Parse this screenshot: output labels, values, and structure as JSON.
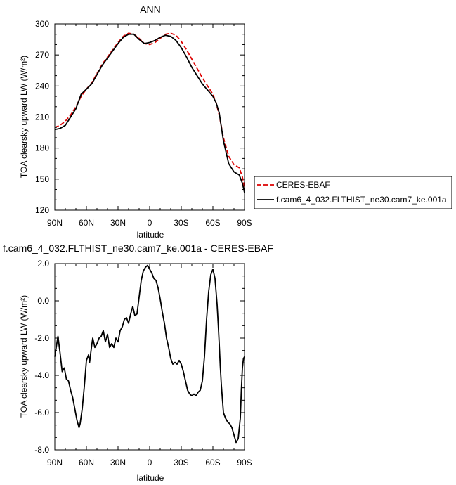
{
  "chart_data": [
    {
      "type": "line",
      "title": "ANN",
      "xlabel": "latitude",
      "ylabel": "TOA clearsky upward LW (W/m²)",
      "xlim": [
        90,
        -90
      ],
      "ylim": [
        120,
        300
      ],
      "x_ticks": [
        90,
        60,
        30,
        0,
        -30,
        -60,
        -90
      ],
      "x_tick_labels": [
        "90N",
        "60N",
        "30N",
        "0",
        "30S",
        "60S",
        "90S"
      ],
      "y_ticks": [
        120,
        150,
        180,
        210,
        240,
        270,
        300
      ],
      "y_tick_labels": [
        "120",
        "150",
        "180",
        "210",
        "240",
        "270",
        "300"
      ],
      "legend_position": "right",
      "series": [
        {
          "name": "CERES-EBAF",
          "color": "#dd0000",
          "dash": "dashed",
          "x": [
            90,
            85,
            80,
            75,
            70,
            65,
            60,
            55,
            50,
            45,
            40,
            35,
            30,
            25,
            20,
            15,
            10,
            5,
            0,
            -5,
            -10,
            -15,
            -20,
            -25,
            -30,
            -35,
            -40,
            -45,
            -50,
            -55,
            -60,
            -63,
            -66,
            -70,
            -75,
            -80,
            -85,
            -88,
            -90
          ],
          "y": [
            200,
            202,
            206,
            212,
            220,
            230,
            237,
            243,
            252,
            261,
            268,
            275,
            282,
            288,
            291,
            290,
            286,
            281,
            280,
            282,
            286,
            290,
            291,
            289,
            283,
            275,
            266,
            257,
            248,
            240,
            232,
            224,
            212,
            190,
            172,
            164,
            161,
            152,
            142
          ]
        },
        {
          "name": "f.cam6_4_032.FLTHIST_ne30.cam7_ke.001a",
          "color": "#000000",
          "dash": "solid",
          "x": [
            90,
            85,
            80,
            75,
            70,
            65,
            60,
            55,
            50,
            45,
            40,
            35,
            30,
            25,
            20,
            15,
            10,
            5,
            0,
            -5,
            -10,
            -15,
            -20,
            -25,
            -30,
            -35,
            -40,
            -45,
            -50,
            -55,
            -60,
            -63,
            -66,
            -70,
            -75,
            -80,
            -85,
            -88,
            -90
          ],
          "y": [
            198,
            199,
            202,
            210,
            218,
            232,
            237,
            242,
            251,
            260,
            267,
            274,
            281,
            287,
            290,
            290,
            285,
            281,
            282,
            284,
            287,
            289,
            288,
            284,
            277,
            268,
            258,
            250,
            242,
            236,
            230,
            224,
            214,
            187,
            165,
            157,
            154,
            146,
            137
          ]
        }
      ]
    },
    {
      "type": "line",
      "title": "f.cam6_4_032.FLTHIST_ne30.cam7_ke.001a - CERES-EBAF",
      "xlabel": "latitude",
      "ylabel": "TOA clearsky upward LW (W/m²)",
      "xlim": [
        90,
        -90
      ],
      "ylim": [
        -8,
        2
      ],
      "x_ticks": [
        90,
        60,
        30,
        0,
        -30,
        -60,
        -90
      ],
      "x_tick_labels": [
        "90N",
        "60N",
        "30N",
        "0",
        "30S",
        "60S",
        "90S"
      ],
      "y_ticks": [
        -8,
        -6,
        -4,
        -2,
        0,
        2
      ],
      "y_tick_labels": [
        "-8.0",
        "-6.0",
        "-4.0",
        "-2.0",
        "0.0",
        "2.0"
      ],
      "series": [
        {
          "color": "#000000",
          "dash": "solid",
          "x": [
            90,
            87,
            85,
            83,
            81,
            79,
            77,
            75,
            73,
            71,
            69,
            67,
            66,
            64,
            62,
            60,
            58,
            57,
            55,
            54,
            52,
            50,
            48,
            46,
            44,
            42,
            40,
            38,
            36,
            34,
            32,
            30,
            28,
            26,
            24,
            22,
            20,
            18,
            16,
            14,
            12,
            10,
            8,
            6,
            4,
            2,
            0,
            -2,
            -4,
            -6,
            -8,
            -10,
            -12,
            -14,
            -16,
            -18,
            -20,
            -22,
            -24,
            -26,
            -28,
            -30,
            -32,
            -34,
            -36,
            -38,
            -40,
            -42,
            -44,
            -46,
            -48,
            -50,
            -52,
            -54,
            -56,
            -58,
            -60,
            -62,
            -64,
            -65,
            -66,
            -67,
            -68,
            -70,
            -72,
            -74,
            -76,
            -78,
            -80,
            -82,
            -84,
            -86,
            -87,
            -88,
            -89,
            -90
          ],
          "y": [
            -3.0,
            -1.9,
            -2.8,
            -3.8,
            -3.6,
            -4.2,
            -4.3,
            -4.8,
            -5.2,
            -5.8,
            -6.4,
            -6.8,
            -6.6,
            -5.8,
            -4.6,
            -3.2,
            -2.9,
            -3.3,
            -2.4,
            -2.0,
            -2.5,
            -2.3,
            -2.0,
            -1.9,
            -1.6,
            -2.2,
            -1.8,
            -2.5,
            -2.3,
            -2.5,
            -2.0,
            -2.2,
            -1.6,
            -1.4,
            -1.0,
            -0.9,
            -1.2,
            -0.7,
            -0.3,
            -0.8,
            -0.7,
            0.2,
            1.1,
            1.6,
            1.8,
            1.9,
            1.7,
            1.5,
            1.2,
            1.1,
            0.7,
            0.1,
            -0.6,
            -1.2,
            -2.0,
            -2.5,
            -3.1,
            -3.4,
            -3.3,
            -3.4,
            -3.2,
            -3.4,
            -3.8,
            -4.3,
            -4.8,
            -5.0,
            -5.1,
            -5.0,
            -5.1,
            -4.9,
            -4.8,
            -4.3,
            -3.0,
            -1.0,
            0.5,
            1.4,
            1.7,
            1.2,
            -0.2,
            -1.2,
            -2.3,
            -3.5,
            -4.5,
            -6.0,
            -6.3,
            -6.5,
            -6.6,
            -6.8,
            -7.2,
            -7.6,
            -7.4,
            -6.3,
            -4.8,
            -3.6,
            -3.1,
            -3.0
          ]
        }
      ]
    }
  ]
}
